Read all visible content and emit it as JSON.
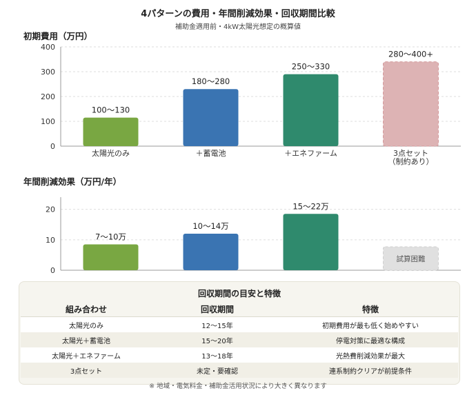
{
  "title": "4パターンの費用・年間削減効果・回収期間比較",
  "subtitle": "補助金適用前・4kW太陽光想定の概算値",
  "chart_data": [
    {
      "type": "bar",
      "title": "初期費用（万円）",
      "categories": [
        "太陽光のみ",
        "＋蓄電池",
        "＋エネファーム",
        "3点セット\n（制約あり）"
      ],
      "ranges": [
        [
          100,
          130
        ],
        [
          180,
          280
        ],
        [
          250,
          330
        ],
        [
          280,
          400
        ]
      ],
      "values": [
        115,
        230,
        290,
        340
      ],
      "labels": [
        "100〜130",
        "180〜280",
        "250〜330",
        "280〜400+"
      ],
      "yticks": [
        0,
        100,
        200,
        300,
        400
      ],
      "ylim": [
        0,
        400
      ],
      "grid": true,
      "colors": [
        "#79a742",
        "#3a74b2",
        "#2f8a6d",
        "#ddb3b4"
      ]
    },
    {
      "type": "bar",
      "title": "年間削減効果（万円/年）",
      "categories": [
        "太陽光のみ",
        "＋蓄電池",
        "＋エネファーム",
        "3点セット"
      ],
      "ranges": [
        [
          7,
          10
        ],
        [
          10,
          14
        ],
        [
          15,
          22
        ],
        null
      ],
      "values": [
        8.5,
        12,
        18.5,
        null
      ],
      "labels": [
        "7〜10万",
        "10〜14万",
        "15〜22万",
        ""
      ],
      "placeholder_label": "試算困難",
      "yticks": [
        0,
        10,
        20
      ],
      "ylim": [
        0,
        24
      ],
      "grid": true,
      "colors": [
        "#79a742",
        "#3a74b2",
        "#2f8a6d",
        "#e0e0e0"
      ]
    }
  ],
  "summary": {
    "title": "回収期間の目安と特徴",
    "headers": [
      "組み合わせ",
      "回収期間",
      "特徴"
    ],
    "rows": [
      [
        "太陽光のみ",
        "12〜15年",
        "初期費用が最も低く始めやすい"
      ],
      [
        "太陽光＋蓄電池",
        "15〜20年",
        "停電対策に最適な構成"
      ],
      [
        "太陽光＋エネファーム",
        "13〜18年",
        "光熱費削減効果が最大"
      ],
      [
        "3点セット",
        "未定・要確認",
        "連系制約クリアが前提条件"
      ]
    ]
  },
  "footnote": "※ 地域・電気料金・補助金活用状況により大きく異なります"
}
